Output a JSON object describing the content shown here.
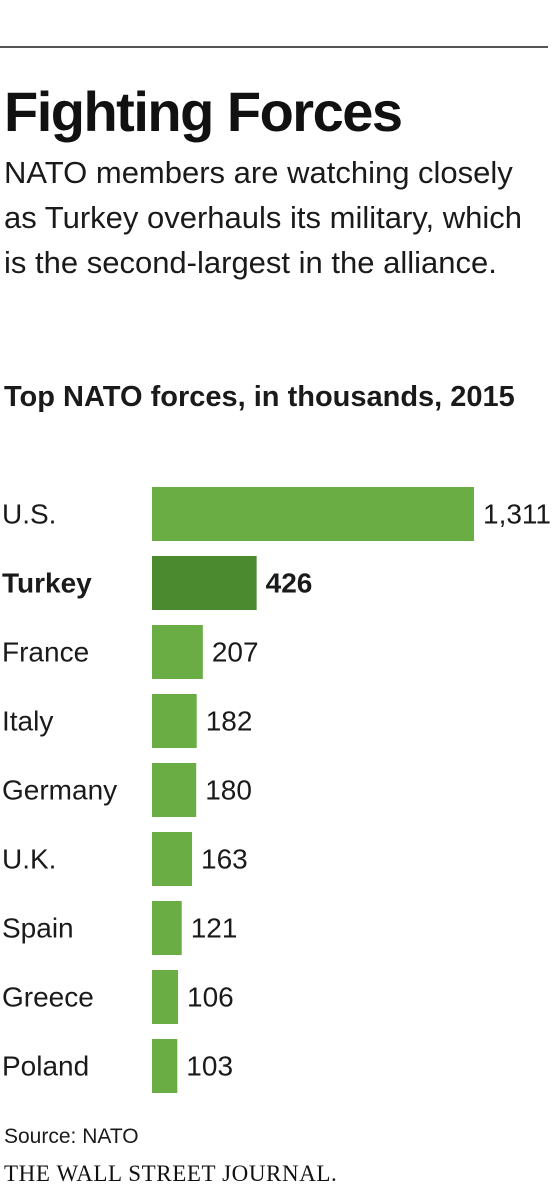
{
  "header": {
    "title": "Fighting Forces",
    "dek": "NATO members are watching closely as Turkey overhauls its military, which is the second-largest in the alliance."
  },
  "chart_data": {
    "type": "bar",
    "orientation": "horizontal",
    "title": "Top NATO forces, in thousands, 2015",
    "categories": [
      "U.S.",
      "Turkey",
      "France",
      "Italy",
      "Germany",
      "U.K.",
      "Spain",
      "Greece",
      "Poland"
    ],
    "values": [
      1311,
      426,
      207,
      182,
      180,
      163,
      121,
      106,
      103
    ],
    "value_labels": [
      "1,311",
      "426",
      "207",
      "182",
      "180",
      "163",
      "121",
      "106",
      "103"
    ],
    "highlight": "Turkey",
    "xlabel": "",
    "ylabel": "",
    "xlim": [
      0,
      1311
    ],
    "grid": false,
    "legend": "none",
    "colors": {
      "bar": "#6aad45",
      "highlight": "#4b8a2e"
    }
  },
  "footer": {
    "source": "Source: NATO",
    "publisher": "THE WALL STREET JOURNAL."
  }
}
